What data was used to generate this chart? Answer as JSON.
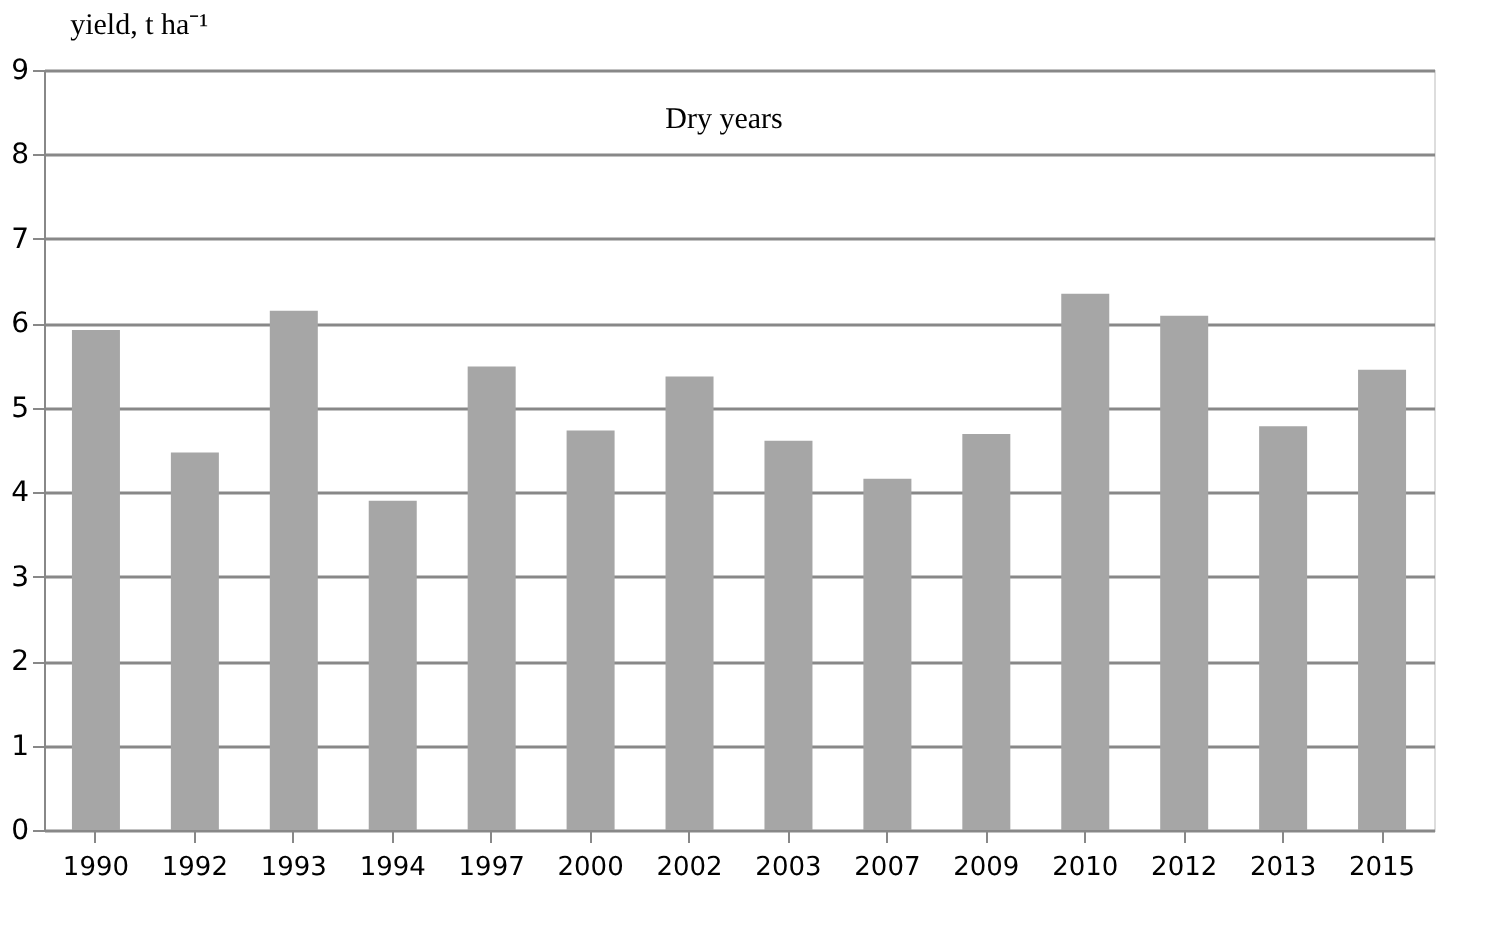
{
  "chart_data": {
    "type": "bar",
    "ylabel": "yield, t ha⁻¹",
    "annotations": [
      "Dry years"
    ],
    "categories": [
      "1990",
      "1992",
      "1993",
      "1994",
      "1997",
      "2000",
      "2002",
      "2003",
      "2007",
      "2009",
      "2010",
      "2012",
      "2013",
      "2015"
    ],
    "values": [
      5.92,
      4.47,
      6.15,
      3.9,
      5.49,
      4.73,
      5.37,
      4.61,
      4.16,
      4.69,
      6.35,
      6.09,
      4.78,
      5.45
    ],
    "color": "#a6a6a6",
    "ylim": [
      0,
      9
    ],
    "yticks": [
      0,
      1,
      2,
      3,
      4,
      5,
      6,
      7,
      8,
      9
    ],
    "grid": "y"
  }
}
